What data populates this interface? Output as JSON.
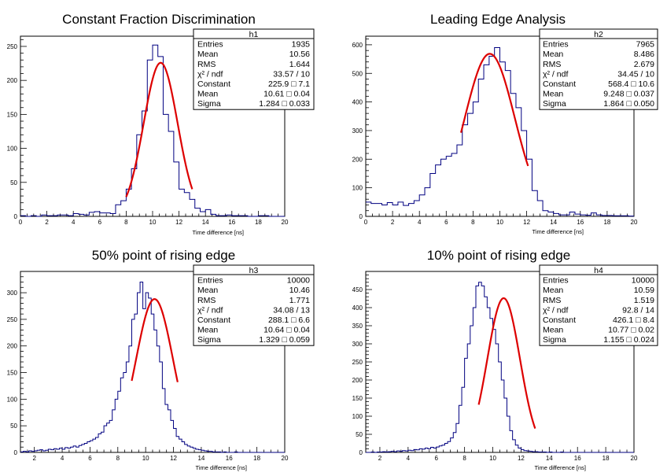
{
  "chart_data": [
    {
      "type": "histogram",
      "title": "Constant Fraction Discrimination",
      "xlabel": "Time difference [ns]",
      "xlim": [
        0,
        20
      ],
      "ylim": [
        0,
        265
      ],
      "xticks": [
        "0",
        "2",
        "4",
        "6",
        "8",
        "10",
        "12",
        "14",
        "16",
        "18",
        "20"
      ],
      "yticks": [
        "0",
        "50",
        "100",
        "150",
        "200",
        "250"
      ],
      "bin_start": 0,
      "bin_width": 0.4,
      "counts": [
        1,
        0,
        1,
        0,
        2,
        1,
        1,
        2,
        2,
        1,
        4,
        3,
        2,
        6,
        7,
        5,
        5,
        4,
        17,
        23,
        40,
        70,
        120,
        155,
        230,
        252,
        235,
        150,
        125,
        80,
        40,
        35,
        25,
        12,
        7,
        10,
        3,
        1,
        1,
        2,
        1,
        1,
        1,
        0,
        0,
        1,
        1,
        0,
        0,
        0
      ],
      "color": "#000080",
      "fit": {
        "constant": 225.9,
        "mean": 10.61,
        "sigma": 1.284,
        "range": [
          8.0,
          13.0
        ],
        "color": "#dd0000"
      },
      "stats": {
        "header": "h1",
        "rows": [
          {
            "name": "Entries",
            "value": "1935"
          },
          {
            "name": "Mean",
            "value": "10.56"
          },
          {
            "name": "RMS",
            "value": "1.644"
          },
          {
            "name": "χ² / ndf",
            "value": "33.57 / 10"
          },
          {
            "name": "Constant",
            "value": "225.9 □ 7.1"
          },
          {
            "name": "Mean",
            "value": "10.61 □ 0.04"
          },
          {
            "name": "Sigma",
            "value": "1.284 □ 0.033"
          }
        ]
      }
    },
    {
      "type": "histogram",
      "title": "Leading Edge Analysis",
      "xlabel": "Time difference [ns]",
      "xlim": [
        0,
        20
      ],
      "ylim": [
        0,
        630
      ],
      "xticks": [
        "0",
        "2",
        "4",
        "6",
        "8",
        "10",
        "12",
        "14",
        "16",
        "18",
        "20"
      ],
      "yticks": [
        "0",
        "100",
        "200",
        "300",
        "400",
        "500",
        "600"
      ],
      "bin_start": 0,
      "bin_width": 0.4,
      "counts": [
        50,
        45,
        45,
        40,
        48,
        40,
        50,
        38,
        45,
        55,
        75,
        100,
        150,
        180,
        200,
        210,
        220,
        250,
        320,
        360,
        400,
        480,
        530,
        560,
        590,
        540,
        510,
        430,
        380,
        300,
        200,
        90,
        55,
        20,
        15,
        10,
        5,
        5,
        15,
        8,
        5,
        4,
        12,
        5,
        3,
        3,
        2,
        2,
        2,
        1
      ],
      "color": "#000080",
      "fit": {
        "constant": 568.4,
        "mean": 9.248,
        "sigma": 1.864,
        "range": [
          7.1,
          12.1
        ],
        "color": "#dd0000"
      },
      "stats": {
        "header": "h2",
        "rows": [
          {
            "name": "Entries",
            "value": "7965"
          },
          {
            "name": "Mean",
            "value": "8.486"
          },
          {
            "name": "RMS",
            "value": "2.679"
          },
          {
            "name": "χ² / ndf",
            "value": "34.45 / 10"
          },
          {
            "name": "Constant",
            "value": "568.4 □ 10.6"
          },
          {
            "name": "Mean",
            "value": "9.248 □ 0.037"
          },
          {
            "name": "Sigma",
            "value": "1.864 □ 0.050"
          }
        ]
      }
    },
    {
      "type": "histogram",
      "title": "50% point of rising edge",
      "xlabel": "Time difference [ns]",
      "xlim": [
        1,
        20
      ],
      "ylim": [
        0,
        340
      ],
      "xticks": [
        "2",
        "4",
        "6",
        "8",
        "10",
        "12",
        "14",
        "16",
        "18",
        "20"
      ],
      "yticks": [
        "0",
        "50",
        "100",
        "150",
        "200",
        "250",
        "300"
      ],
      "bin_start": 1,
      "bin_width": 0.2,
      "counts": [
        1,
        2,
        1,
        3,
        2,
        3,
        4,
        5,
        3,
        4,
        6,
        5,
        7,
        6,
        8,
        6,
        9,
        8,
        10,
        12,
        10,
        13,
        15,
        17,
        20,
        22,
        25,
        28,
        35,
        38,
        50,
        55,
        60,
        80,
        100,
        115,
        140,
        150,
        170,
        200,
        250,
        260,
        300,
        320,
        270,
        300,
        290,
        260,
        230,
        200,
        170,
        120,
        90,
        80,
        60,
        45,
        30,
        25,
        20,
        15,
        12,
        10,
        8,
        6,
        5,
        4,
        3,
        2,
        2,
        1,
        1,
        1,
        0,
        1,
        0,
        0,
        0,
        1,
        0,
        0,
        0,
        0,
        0,
        0,
        0,
        0,
        0,
        0,
        0,
        0,
        0,
        0,
        0,
        0,
        0
      ],
      "color": "#000080",
      "fit": {
        "constant": 288.1,
        "mean": 10.64,
        "sigma": 1.329,
        "range": [
          9.0,
          12.3
        ],
        "color": "#dd0000"
      },
      "stats": {
        "header": "h3",
        "rows": [
          {
            "name": "Entries",
            "value": "10000"
          },
          {
            "name": "Mean",
            "value": "10.46"
          },
          {
            "name": "RMS",
            "value": "1.771"
          },
          {
            "name": "χ² / ndf",
            "value": "34.08 / 13"
          },
          {
            "name": "Constant",
            "value": "288.1 □ 6.6"
          },
          {
            "name": "Mean",
            "value": "10.64 □ 0.04"
          },
          {
            "name": "Sigma",
            "value": "1.329 □ 0.059"
          }
        ]
      }
    },
    {
      "type": "histogram",
      "title": "10% point of rising edge",
      "xlabel": "Time difference [ns]",
      "xlim": [
        1,
        20
      ],
      "ylim": [
        0,
        500
      ],
      "xticks": [
        "2",
        "4",
        "6",
        "8",
        "10",
        "12",
        "14",
        "16",
        "18",
        "20"
      ],
      "yticks": [
        "0",
        "50",
        "100",
        "150",
        "200",
        "250",
        "300",
        "350",
        "400",
        "450"
      ],
      "bin_start": 1,
      "bin_width": 0.2,
      "counts": [
        0,
        0,
        1,
        0,
        1,
        1,
        2,
        1,
        2,
        3,
        2,
        4,
        3,
        5,
        4,
        6,
        5,
        8,
        7,
        10,
        9,
        12,
        10,
        14,
        12,
        15,
        18,
        20,
        25,
        30,
        40,
        55,
        80,
        130,
        180,
        260,
        300,
        350,
        400,
        460,
        470,
        460,
        430,
        400,
        370,
        340,
        300,
        250,
        200,
        150,
        100,
        60,
        35,
        20,
        12,
        8,
        5,
        4,
        3,
        2,
        2,
        1,
        1,
        1,
        0,
        1,
        0,
        0,
        0,
        1,
        0,
        0,
        0,
        0,
        0,
        0,
        0,
        0,
        0,
        0,
        0,
        0,
        0,
        0,
        0,
        0,
        0,
        0,
        0,
        0,
        0,
        0,
        0,
        0,
        0
      ],
      "color": "#000080",
      "fit": {
        "constant": 426.1,
        "mean": 10.77,
        "sigma": 1.155,
        "range": [
          9.0,
          13.0
        ],
        "color": "#dd0000"
      },
      "stats": {
        "header": "h4",
        "rows": [
          {
            "name": "Entries",
            "value": "10000"
          },
          {
            "name": "Mean",
            "value": "10.59"
          },
          {
            "name": "RMS",
            "value": "1.519"
          },
          {
            "name": "χ² / ndf",
            "value": "92.8 / 14"
          },
          {
            "name": "Constant",
            "value": "426.1 □ 8.4"
          },
          {
            "name": "Mean",
            "value": "10.77 □ 0.02"
          },
          {
            "name": "Sigma",
            "value": "1.155 □ 0.024"
          }
        ]
      }
    }
  ]
}
